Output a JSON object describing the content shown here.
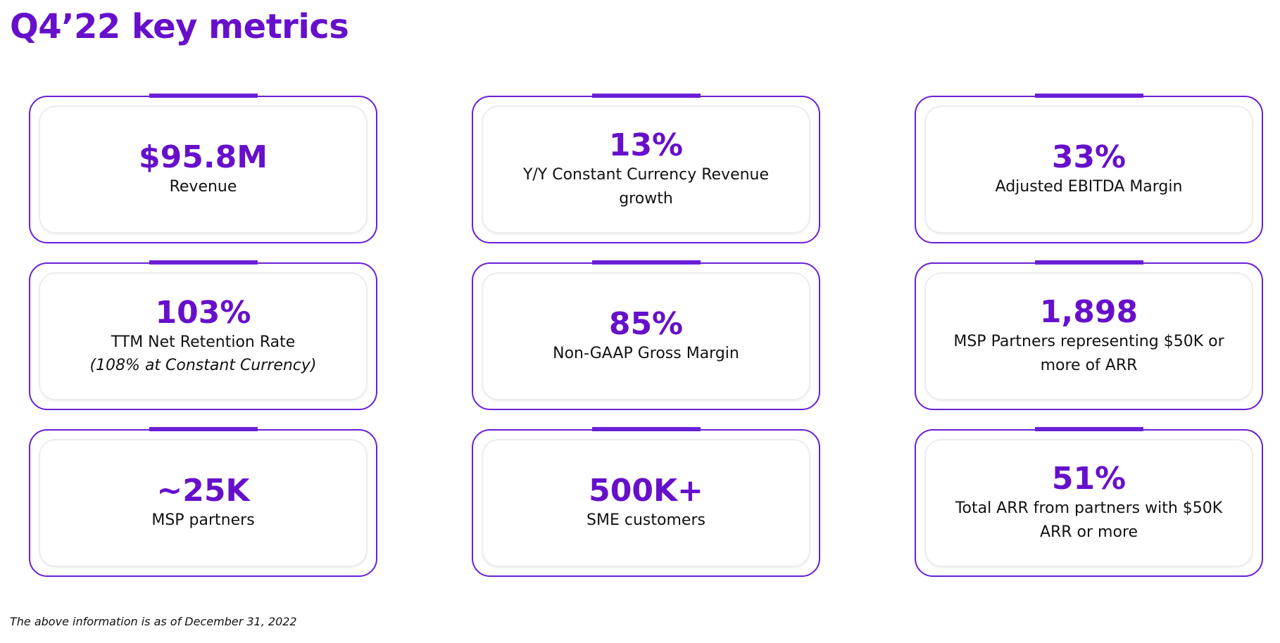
{
  "header": {
    "title": "Q4’22 key metrics"
  },
  "cards": [
    {
      "value": "$95.8M",
      "label": "Revenue"
    },
    {
      "value": "13%",
      "label": "Y/Y Constant Currency Revenue growth"
    },
    {
      "value": "33%",
      "label": "Adjusted EBITDA Margin"
    },
    {
      "value": "103%",
      "label": "TTM Net Retention Rate",
      "note": "(108% at Constant Currency)"
    },
    {
      "value": "85%",
      "label": "Non-GAAP Gross Margin"
    },
    {
      "value": "1,898",
      "label": "MSP Partners representing $50K or more of ARR"
    },
    {
      "value": "~25K",
      "label": "MSP partners"
    },
    {
      "value": "500K+",
      "label": "SME customers"
    },
    {
      "value": "51%",
      "label": "Total ARR from partners with $50K ARR or more"
    }
  ],
  "footer": {
    "note": "The above information is as of December 31, 2022"
  }
}
